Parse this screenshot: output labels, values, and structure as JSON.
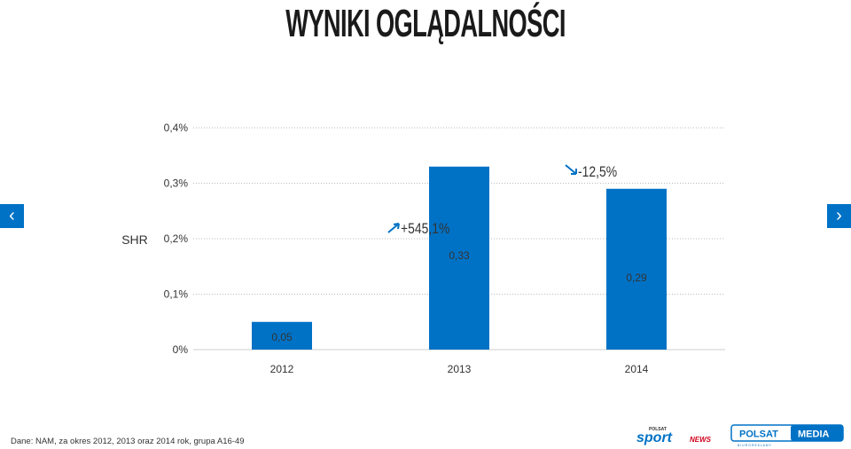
{
  "header": {
    "title": "WYNIKI OGLĄDALNOŚCI"
  },
  "nav": {
    "prev_icon": "chevron-left-icon",
    "next_icon": "chevron-right-icon",
    "prev_glyph": "‹",
    "next_glyph": "›"
  },
  "footer": {
    "source": "Dane: NAM, za okres 2012, 2013 oraz 2014 rok, grupa A16-49"
  },
  "logos": {
    "sport_top": "POLSAT",
    "sport_main": "sport",
    "sport_sub": "NEWS",
    "media_left": "POLSAT",
    "media_right": "MEDIA",
    "media_sub": "B I U R O   R E K L A M Y"
  },
  "colors": {
    "bar": "#0072c6",
    "grid": "#bbbbbb",
    "accent": "#0072c6",
    "text": "#333333"
  },
  "chart_data": {
    "type": "bar",
    "categories": [
      "2012",
      "2013",
      "2014"
    ],
    "values": [
      0.05,
      0.33,
      0.29
    ],
    "data_labels": [
      "0,05",
      "0,33",
      "0,29"
    ],
    "ylabel": "SHR",
    "ylim": [
      0,
      0.4
    ],
    "y_ticks": [
      0,
      0.1,
      0.2,
      0.3,
      0.4
    ],
    "y_tick_labels": [
      "0%",
      "0,1%",
      "0,2%",
      "0,3%",
      "0,4%"
    ],
    "grid": true,
    "annotations": [
      {
        "text": "+545,1%",
        "direction": "up",
        "between": [
          "2012",
          "2013"
        ]
      },
      {
        "text": "-12,5%",
        "direction": "down",
        "between": [
          "2013",
          "2014"
        ]
      }
    ]
  }
}
